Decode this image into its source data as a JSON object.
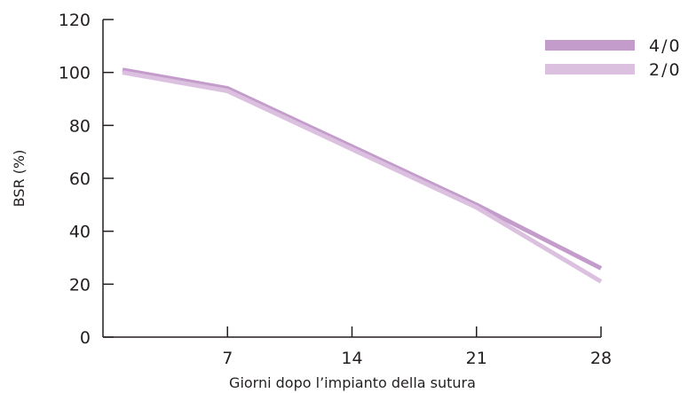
{
  "chart_data": {
    "type": "line",
    "title": "",
    "xlabel": "Giorni dopo l’impianto della sutura",
    "ylabel": "BSR (%)",
    "xlim": [
      0,
      28
    ],
    "ylim": [
      0,
      120
    ],
    "x_ticks": [
      7,
      14,
      21,
      28
    ],
    "y_ticks": [
      0,
      20,
      40,
      60,
      80,
      100,
      120
    ],
    "grid": false,
    "legend_position": "top-right",
    "series": [
      {
        "name": "4/0",
        "color": "#c39ccb",
        "x": [
          0,
          7,
          14,
          21,
          28
        ],
        "y": [
          101,
          94,
          72,
          50,
          26
        ]
      },
      {
        "name": "2/0",
        "color": "#dbc0e0",
        "x": [
          0,
          7,
          14,
          21,
          28
        ],
        "y": [
          100,
          93,
          71,
          49,
          21
        ]
      }
    ]
  }
}
